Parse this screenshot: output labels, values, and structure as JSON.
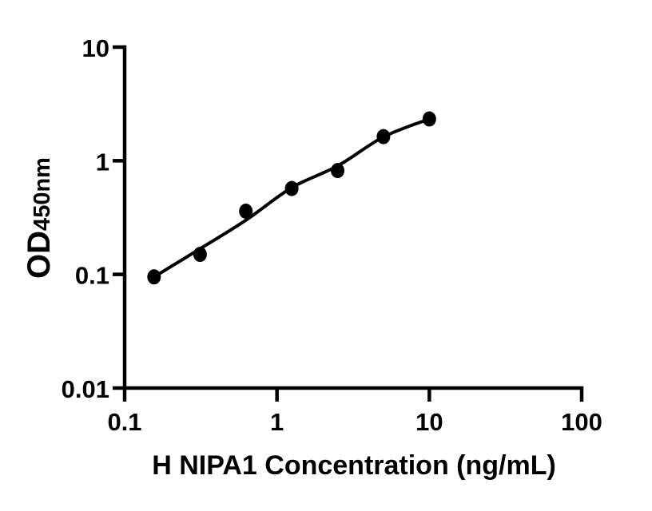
{
  "figure": {
    "background": "#ffffff",
    "foreground": "#000000",
    "kind": "ELISA standard curve plot"
  },
  "chart_data": {
    "type": "scatter",
    "title": "",
    "xlabel": "H NIPA1 Concentration (ng/mL)",
    "ylabel_main": "OD",
    "ylabel_sub": "450nm",
    "x_scale": "log10",
    "y_scale": "log10",
    "xlim": [
      0.1,
      100
    ],
    "ylim": [
      0.01,
      10
    ],
    "grid": "off",
    "legend": "none",
    "x_ticks": [
      {
        "value": 0.1,
        "label": "0.1"
      },
      {
        "value": 1,
        "label": "1"
      },
      {
        "value": 10,
        "label": "10"
      },
      {
        "value": 100,
        "label": "100"
      }
    ],
    "y_ticks": [
      {
        "value": 10,
        "label": "10"
      },
      {
        "value": 1,
        "label": "1"
      },
      {
        "value": 0.1,
        "label": "0.1"
      },
      {
        "value": 0.01,
        "label": "0.01"
      }
    ],
    "series": [
      {
        "name": "standard-curve-points",
        "marker": "filled-circle",
        "color": "#000000",
        "points": [
          {
            "x": 0.156,
            "y": 0.095
          },
          {
            "x": 0.3125,
            "y": 0.15
          },
          {
            "x": 0.625,
            "y": 0.36
          },
          {
            "x": 1.25,
            "y": 0.57
          },
          {
            "x": 2.5,
            "y": 0.82
          },
          {
            "x": 5,
            "y": 1.63
          },
          {
            "x": 10,
            "y": 2.33
          }
        ]
      }
    ],
    "fit_curve": {
      "name": "four-parameter-logistic-fit",
      "color": "#000000",
      "anchors": [
        {
          "x": 0.156,
          "y": 0.095
        },
        {
          "x": 0.3125,
          "y": 0.168
        },
        {
          "x": 0.625,
          "y": 0.3
        },
        {
          "x": 1.25,
          "y": 0.58
        },
        {
          "x": 2.5,
          "y": 0.9
        },
        {
          "x": 5,
          "y": 1.62
        },
        {
          "x": 10,
          "y": 2.33
        }
      ]
    }
  }
}
